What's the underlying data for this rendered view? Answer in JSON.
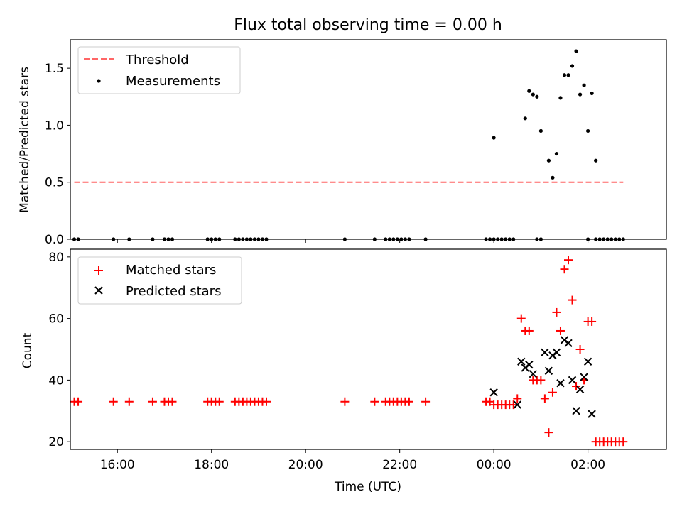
{
  "chart_data": [
    {
      "type": "scatter",
      "title": "Flux total observing time = 0.00 h",
      "xlabel": "",
      "ylabel": "Matched/Predicted stars",
      "ylim": [
        0,
        1.75
      ],
      "xlim": [
        "15:00",
        "03:40"
      ],
      "yticks": [
        "0.0",
        "0.5",
        "1.0",
        "1.5"
      ],
      "yticks_values": [
        0,
        0.5,
        1.0,
        1.5
      ],
      "legend_position": "top-left",
      "threshold": {
        "name": "Threshold",
        "value": 0.5,
        "x_start": "15:05",
        "x_end": "02:45",
        "color": "#ff6666",
        "style": "dashed"
      },
      "series": [
        {
          "name": "Measurements",
          "color": "#000000",
          "points": [
            [
              "15:05",
              0
            ],
            [
              "15:10",
              0
            ],
            [
              "15:55",
              0
            ],
            [
              "16:15",
              0
            ],
            [
              "16:45",
              0
            ],
            [
              "17:00",
              0
            ],
            [
              "17:05",
              0
            ],
            [
              "17:10",
              0
            ],
            [
              "17:55",
              0
            ],
            [
              "18:00",
              0
            ],
            [
              "18:05",
              0
            ],
            [
              "18:10",
              0
            ],
            [
              "18:30",
              0
            ],
            [
              "18:35",
              0
            ],
            [
              "18:40",
              0
            ],
            [
              "18:45",
              0
            ],
            [
              "18:50",
              0
            ],
            [
              "18:55",
              0
            ],
            [
              "19:00",
              0
            ],
            [
              "19:05",
              0
            ],
            [
              "19:10",
              0
            ],
            [
              "20:50",
              0
            ],
            [
              "21:28",
              0
            ],
            [
              "21:42",
              0
            ],
            [
              "21:47",
              0
            ],
            [
              "21:52",
              0
            ],
            [
              "21:57",
              0
            ],
            [
              "22:02",
              0
            ],
            [
              "22:07",
              0
            ],
            [
              "22:12",
              0
            ],
            [
              "22:33",
              0
            ],
            [
              "23:50",
              0
            ],
            [
              "23:55",
              0
            ],
            [
              "00:00",
              0
            ],
            [
              "00:05",
              0
            ],
            [
              "00:10",
              0
            ],
            [
              "00:15",
              0
            ],
            [
              "00:20",
              0
            ],
            [
              "00:25",
              0
            ],
            [
              "00:55",
              0
            ],
            [
              "01:00",
              0
            ],
            [
              "00:00",
              0.89
            ],
            [
              "00:40",
              1.06
            ],
            [
              "00:45",
              1.3
            ],
            [
              "00:50",
              1.27
            ],
            [
              "00:55",
              1.25
            ],
            [
              "01:00",
              0.95
            ],
            [
              "01:10",
              0.69
            ],
            [
              "01:15",
              0.54
            ],
            [
              "01:20",
              0.75
            ],
            [
              "01:25",
              1.24
            ],
            [
              "01:30",
              1.44
            ],
            [
              "01:35",
              1.44
            ],
            [
              "01:40",
              1.52
            ],
            [
              "01:45",
              1.65
            ],
            [
              "01:50",
              1.27
            ],
            [
              "01:55",
              1.35
            ],
            [
              "02:00",
              0.95
            ],
            [
              "02:05",
              1.28
            ],
            [
              "02:10",
              0.69
            ],
            [
              "02:00",
              0
            ],
            [
              "02:10",
              0
            ],
            [
              "02:15",
              0
            ],
            [
              "02:20",
              0
            ],
            [
              "02:25",
              0
            ],
            [
              "02:30",
              0
            ],
            [
              "02:35",
              0
            ],
            [
              "02:40",
              0
            ],
            [
              "02:45",
              0
            ]
          ]
        }
      ]
    },
    {
      "type": "scatter",
      "title": "",
      "xlabel": "Time (UTC)",
      "ylabel": "Count",
      "ylim": [
        17.5,
        82.5
      ],
      "xlim": [
        "15:00",
        "03:40"
      ],
      "xticks": [
        "16:00",
        "18:00",
        "20:00",
        "22:00",
        "00:00",
        "02:00"
      ],
      "yticks": [
        "20",
        "40",
        "60",
        "80"
      ],
      "yticks_values": [
        20,
        40,
        60,
        80
      ],
      "legend_position": "top-left",
      "series": [
        {
          "name": "Matched stars",
          "color": "#ff0000",
          "marker": "plus",
          "points": [
            [
              "15:05",
              33
            ],
            [
              "15:10",
              33
            ],
            [
              "15:55",
              33
            ],
            [
              "16:15",
              33
            ],
            [
              "16:45",
              33
            ],
            [
              "17:00",
              33
            ],
            [
              "17:05",
              33
            ],
            [
              "17:10",
              33
            ],
            [
              "17:55",
              33
            ],
            [
              "18:00",
              33
            ],
            [
              "18:05",
              33
            ],
            [
              "18:10",
              33
            ],
            [
              "18:30",
              33
            ],
            [
              "18:35",
              33
            ],
            [
              "18:40",
              33
            ],
            [
              "18:45",
              33
            ],
            [
              "18:50",
              33
            ],
            [
              "18:55",
              33
            ],
            [
              "19:00",
              33
            ],
            [
              "19:05",
              33
            ],
            [
              "19:10",
              33
            ],
            [
              "20:50",
              33
            ],
            [
              "21:28",
              33
            ],
            [
              "21:42",
              33
            ],
            [
              "21:47",
              33
            ],
            [
              "21:52",
              33
            ],
            [
              "21:57",
              33
            ],
            [
              "22:02",
              33
            ],
            [
              "22:07",
              33
            ],
            [
              "22:12",
              33
            ],
            [
              "22:33",
              33
            ],
            [
              "23:50",
              33
            ],
            [
              "23:55",
              33
            ],
            [
              "00:00",
              32
            ],
            [
              "00:05",
              32
            ],
            [
              "00:10",
              32
            ],
            [
              "00:15",
              32
            ],
            [
              "00:20",
              32
            ],
            [
              "00:25",
              32
            ],
            [
              "00:30",
              34
            ],
            [
              "00:35",
              60
            ],
            [
              "00:40",
              56
            ],
            [
              "00:45",
              56
            ],
            [
              "00:50",
              40
            ],
            [
              "00:55",
              40
            ],
            [
              "01:00",
              40
            ],
            [
              "01:05",
              34
            ],
            [
              "01:10",
              23
            ],
            [
              "01:15",
              36
            ],
            [
              "01:20",
              62
            ],
            [
              "01:25",
              56
            ],
            [
              "01:30",
              76
            ],
            [
              "01:35",
              79
            ],
            [
              "01:40",
              66
            ],
            [
              "01:45",
              38
            ],
            [
              "01:50",
              50
            ],
            [
              "01:55",
              40
            ],
            [
              "02:00",
              59
            ],
            [
              "02:05",
              59
            ],
            [
              "02:10",
              20
            ],
            [
              "02:15",
              20
            ],
            [
              "02:20",
              20
            ],
            [
              "02:25",
              20
            ],
            [
              "02:30",
              20
            ],
            [
              "02:35",
              20
            ],
            [
              "02:40",
              20
            ],
            [
              "02:45",
              20
            ]
          ]
        },
        {
          "name": "Predicted stars",
          "color": "#000000",
          "marker": "x",
          "points": [
            [
              "00:00",
              36
            ],
            [
              "00:30",
              32
            ],
            [
              "00:35",
              46
            ],
            [
              "00:40",
              44
            ],
            [
              "00:45",
              45
            ],
            [
              "00:50",
              42
            ],
            [
              "01:05",
              49
            ],
            [
              "01:10",
              43
            ],
            [
              "01:15",
              48
            ],
            [
              "01:20",
              49
            ],
            [
              "01:25",
              39
            ],
            [
              "01:30",
              53
            ],
            [
              "01:35",
              52
            ],
            [
              "01:40",
              40
            ],
            [
              "01:45",
              30
            ],
            [
              "01:50",
              37
            ],
            [
              "01:55",
              41
            ],
            [
              "02:00",
              46
            ],
            [
              "02:05",
              29
            ]
          ]
        }
      ]
    }
  ]
}
